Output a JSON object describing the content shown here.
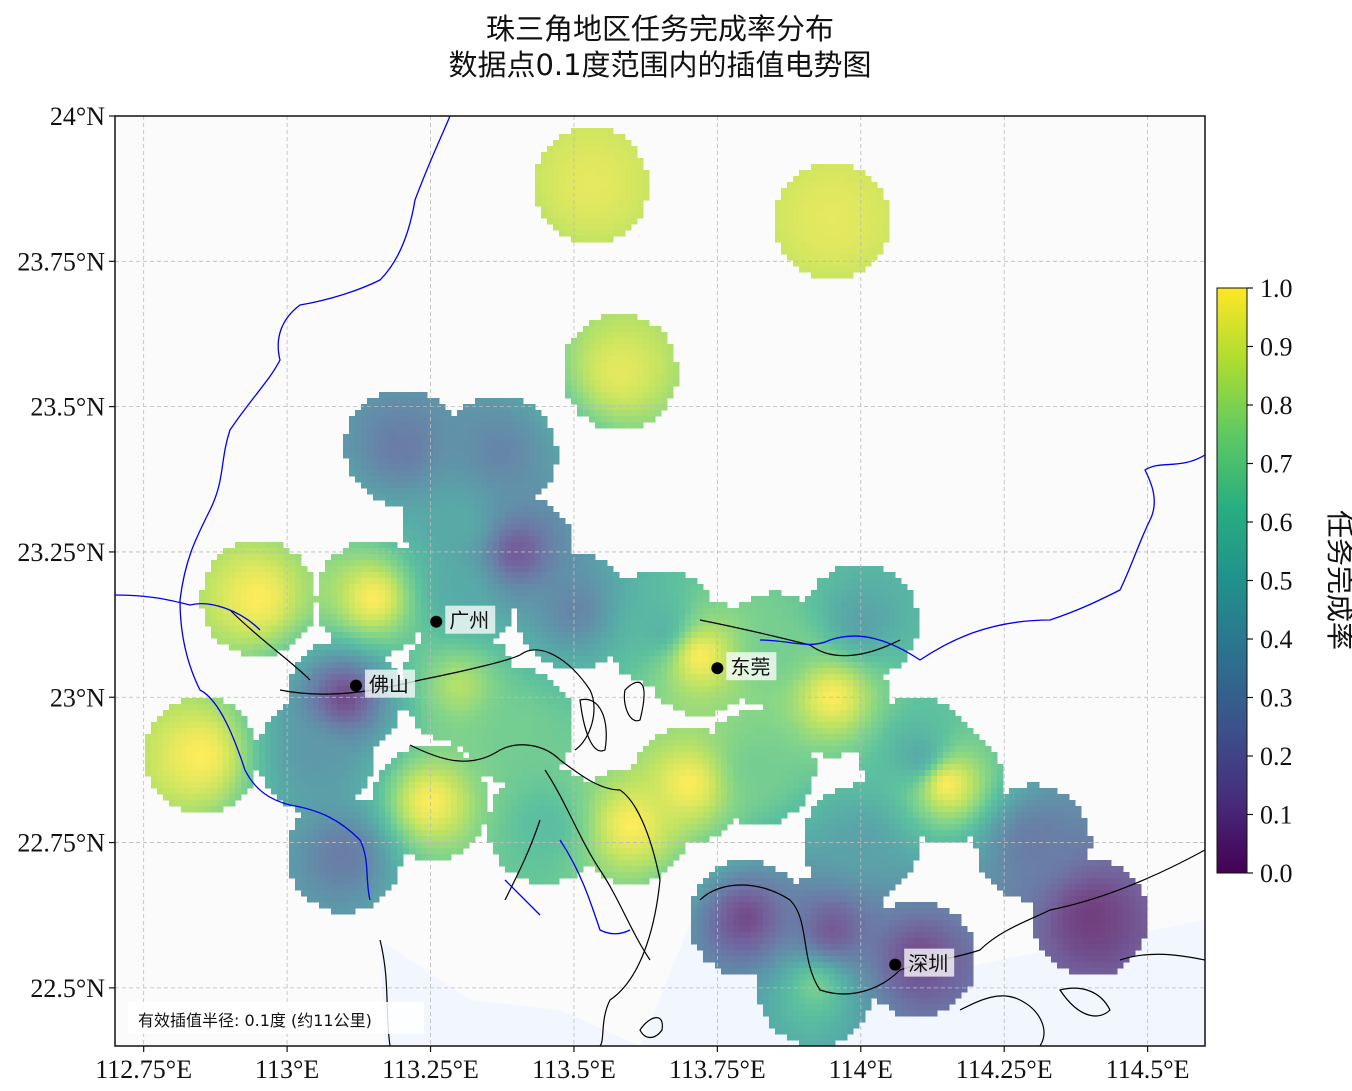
{
  "title": {
    "line1": "珠三角地区任务完成率分布",
    "line2": "数据点0.1度范围内的插值电势图"
  },
  "map": {
    "lon_range": [
      112.7,
      114.6
    ],
    "lat_range": [
      22.4,
      24.0
    ],
    "x_ticks": [
      {
        "value": 112.75,
        "label": "112.75°E"
      },
      {
        "value": 113.0,
        "label": "113°E"
      },
      {
        "value": 113.25,
        "label": "113.25°E"
      },
      {
        "value": 113.5,
        "label": "113.5°E"
      },
      {
        "value": 113.75,
        "label": "113.75°E"
      },
      {
        "value": 114.0,
        "label": "114°E"
      },
      {
        "value": 114.25,
        "label": "114.25°E"
      },
      {
        "value": 114.5,
        "label": "114.5°E"
      }
    ],
    "y_ticks": [
      {
        "value": 24.0,
        "label": "24°N"
      },
      {
        "value": 23.75,
        "label": "23.75°N"
      },
      {
        "value": 23.5,
        "label": "23.5°N"
      },
      {
        "value": 23.25,
        "label": "23.25°N"
      },
      {
        "value": 23.0,
        "label": "23°N"
      },
      {
        "value": 22.75,
        "label": "22.75°N"
      },
      {
        "value": 22.5,
        "label": "22.5°N"
      }
    ],
    "grid": true,
    "cities": [
      {
        "name": "广州",
        "lon": 113.26,
        "lat": 23.13
      },
      {
        "name": "佛山",
        "lon": 113.12,
        "lat": 23.02
      },
      {
        "name": "东莞",
        "lon": 113.75,
        "lat": 23.05
      },
      {
        "name": "深圳",
        "lon": 114.06,
        "lat": 22.54
      }
    ],
    "note": "有效插值半径: 0.1度 (约11公里)"
  },
  "chart_data": {
    "type": "heatmap",
    "colormap": "viridis",
    "interpolation_radius_deg": 0.1,
    "points": [
      {
        "lon": 113.53,
        "lat": 23.88,
        "value": 0.95
      },
      {
        "lon": 113.95,
        "lat": 23.82,
        "value": 0.95
      },
      {
        "lon": 113.58,
        "lat": 23.56,
        "value": 0.95
      },
      {
        "lon": 113.2,
        "lat": 23.43,
        "value": 0.25
      },
      {
        "lon": 113.37,
        "lat": 23.42,
        "value": 0.3
      },
      {
        "lon": 113.3,
        "lat": 23.3,
        "value": 0.5
      },
      {
        "lon": 113.4,
        "lat": 23.25,
        "value": 0.1
      },
      {
        "lon": 112.95,
        "lat": 23.17,
        "value": 1.0
      },
      {
        "lon": 113.15,
        "lat": 23.17,
        "value": 1.0
      },
      {
        "lon": 113.3,
        "lat": 23.18,
        "value": 0.5
      },
      {
        "lon": 113.5,
        "lat": 23.15,
        "value": 0.3
      },
      {
        "lon": 113.1,
        "lat": 23.0,
        "value": 0.05
      },
      {
        "lon": 113.3,
        "lat": 23.02,
        "value": 0.85
      },
      {
        "lon": 113.4,
        "lat": 22.95,
        "value": 0.7
      },
      {
        "lon": 112.85,
        "lat": 22.9,
        "value": 1.0
      },
      {
        "lon": 113.05,
        "lat": 22.9,
        "value": 0.4
      },
      {
        "lon": 113.25,
        "lat": 22.82,
        "value": 1.0
      },
      {
        "lon": 113.1,
        "lat": 22.73,
        "value": 0.25
      },
      {
        "lon": 113.45,
        "lat": 22.78,
        "value": 0.6
      },
      {
        "lon": 113.6,
        "lat": 22.78,
        "value": 1.0
      },
      {
        "lon": 113.65,
        "lat": 23.12,
        "value": 0.55
      },
      {
        "lon": 113.72,
        "lat": 23.07,
        "value": 1.0
      },
      {
        "lon": 113.7,
        "lat": 22.85,
        "value": 1.0
      },
      {
        "lon": 113.85,
        "lat": 23.08,
        "value": 0.7
      },
      {
        "lon": 113.95,
        "lat": 23.0,
        "value": 1.0
      },
      {
        "lon": 113.82,
        "lat": 22.88,
        "value": 0.7
      },
      {
        "lon": 114.0,
        "lat": 23.13,
        "value": 0.45
      },
      {
        "lon": 114.1,
        "lat": 22.9,
        "value": 0.5
      },
      {
        "lon": 114.15,
        "lat": 22.85,
        "value": 1.0
      },
      {
        "lon": 114.0,
        "lat": 22.75,
        "value": 0.45
      },
      {
        "lon": 114.3,
        "lat": 22.75,
        "value": 0.25
      },
      {
        "lon": 113.8,
        "lat": 22.62,
        "value": 0.05
      },
      {
        "lon": 113.95,
        "lat": 22.6,
        "value": 0.1
      },
      {
        "lon": 114.1,
        "lat": 22.55,
        "value": 0.05
      },
      {
        "lon": 113.92,
        "lat": 22.5,
        "value": 0.7
      },
      {
        "lon": 114.4,
        "lat": 22.62,
        "value": 0.0
      }
    ]
  },
  "colorbar": {
    "label": "任务完成率",
    "range": [
      0.0,
      1.0
    ],
    "ticks": [
      "0.0",
      "0.1",
      "0.2",
      "0.3",
      "0.4",
      "0.5",
      "0.6",
      "0.7",
      "0.8",
      "0.9",
      "1.0"
    ]
  },
  "colors": {
    "boundary": "#0000ee",
    "coast": "#000000",
    "sea": "#f2f6fe",
    "plot_bg": "#fbfbfb"
  }
}
